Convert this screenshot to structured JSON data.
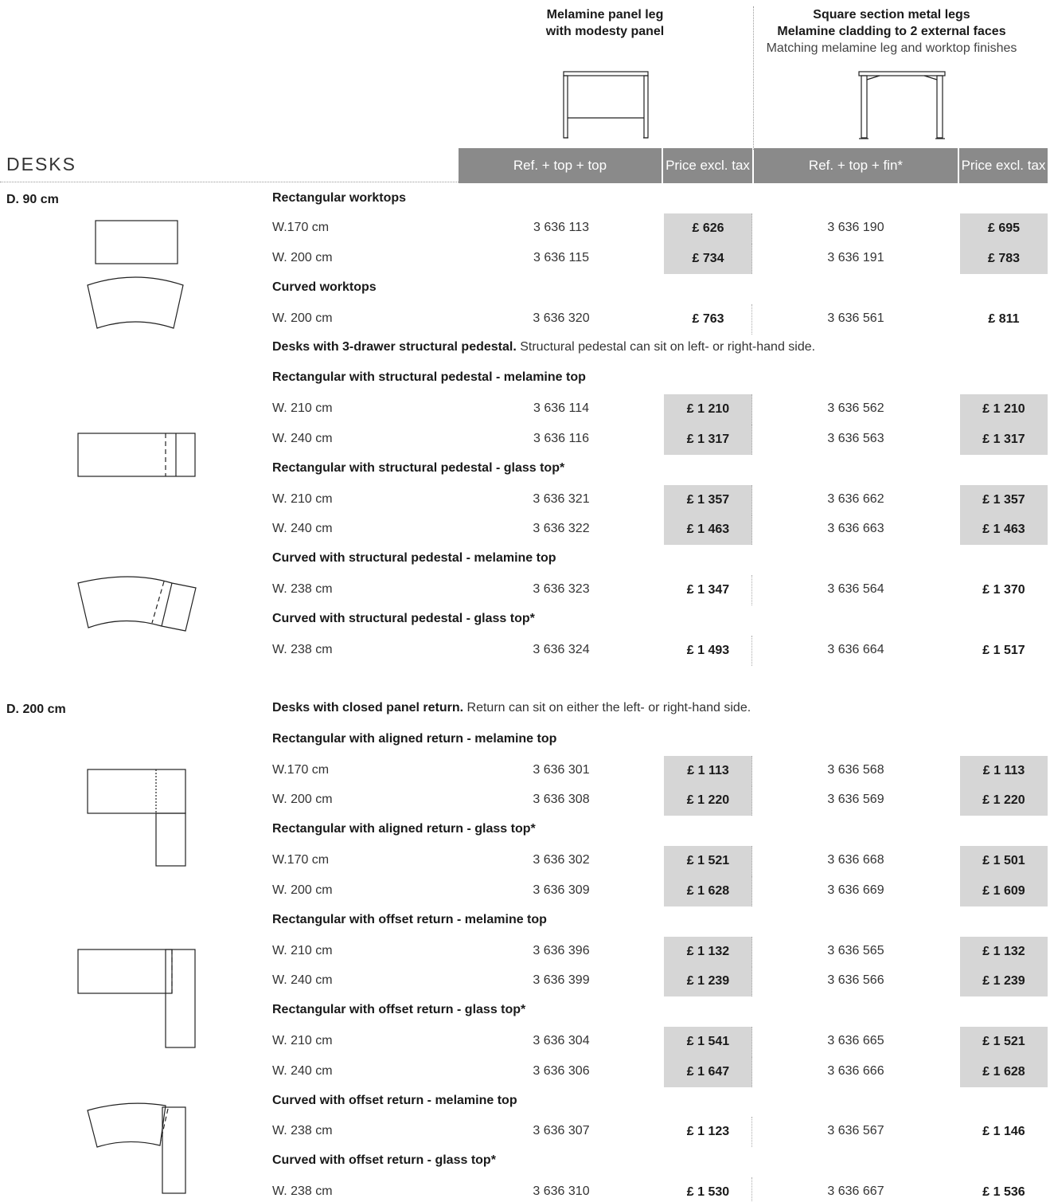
{
  "header": {
    "col1_line1": "Melamine panel leg",
    "col1_line2": "with modesty panel",
    "col2_line1": "Square section metal legs",
    "col2_line2": "Melamine cladding to 2 external faces",
    "col2_line3": "Matching melamine leg and worktop finishes"
  },
  "title": "DESKS",
  "table_header": {
    "ref1": "Ref. + top + top",
    "price1": "Price excl. tax",
    "ref2": "Ref. + top + fin*",
    "price2": "Price excl. tax"
  },
  "sections": {
    "d90": "D. 90 cm",
    "d200": "D. 200 cm"
  },
  "rows": [
    {
      "group": "Rectangular worktops"
    },
    {
      "w": "W.170 cm",
      "r1": "3 636 113",
      "p1": "£ 626",
      "r2": "3 636 190",
      "p2": "£ 695",
      "shaded": true
    },
    {
      "w": "W. 200 cm",
      "r1": "3 636 115",
      "p1": "£ 734",
      "r2": "3 636 191",
      "p2": "£ 783",
      "shaded": true
    },
    {
      "group": "Curved worktops"
    },
    {
      "w": "W. 200 cm",
      "r1": "3 636 320",
      "p1": "£ 763",
      "r2": "3 636 561",
      "p2": "£ 811",
      "shaded": false
    },
    {
      "group": "Desks with 3-drawer structural pedestal.",
      "note": " Structural pedestal can sit on left- or right-hand side."
    },
    {
      "group": "Rectangular with structural pedestal - melamine top"
    },
    {
      "w": "W. 210 cm",
      "r1": "3 636 114",
      "p1": "£ 1 210",
      "r2": "3 636 562",
      "p2": "£ 1 210",
      "shaded": true
    },
    {
      "w": "W. 240 cm",
      "r1": "3 636 116",
      "p1": "£ 1 317",
      "r2": "3 636 563",
      "p2": "£ 1 317",
      "shaded": true
    },
    {
      "group": "Rectangular with structural pedestal - glass top*"
    },
    {
      "w": "W. 210 cm",
      "r1": "3 636 321",
      "p1": "£ 1 357",
      "r2": "3 636 662",
      "p2": "£ 1 357",
      "shaded": true
    },
    {
      "w": "W. 240 cm",
      "r1": "3 636 322",
      "p1": "£ 1 463",
      "r2": "3 636 663",
      "p2": "£ 1 463",
      "shaded": true
    },
    {
      "group": "Curved with structural pedestal - melamine top"
    },
    {
      "w": "W. 238 cm",
      "r1": "3 636 323",
      "p1": "£ 1 347",
      "r2": "3 636 564",
      "p2": "£ 1 370",
      "shaded": false
    },
    {
      "group": "Curved with structural pedestal - glass top*"
    },
    {
      "w": "W. 238 cm",
      "r1": "3 636 324",
      "p1": "£ 1 493",
      "r2": "3 636 664",
      "p2": "£ 1 517",
      "shaded": false
    },
    {
      "group": "Desks with closed panel return.",
      "note": " Return can sit on either the left- or right-hand side."
    },
    {
      "group": "Rectangular with aligned return - melamine top"
    },
    {
      "w": "W.170 cm",
      "r1": "3 636 301",
      "p1": "£ 1 113",
      "r2": "3 636 568",
      "p2": "£ 1 113",
      "shaded": true
    },
    {
      "w": "W. 200 cm",
      "r1": "3 636 308",
      "p1": "£ 1 220",
      "r2": "3 636 569",
      "p2": "£ 1 220",
      "shaded": true
    },
    {
      "group": "Rectangular with aligned return - glass top*"
    },
    {
      "w": "W.170 cm",
      "r1": "3 636 302",
      "p1": "£ 1 521",
      "r2": "3 636 668",
      "p2": "£ 1 501",
      "shaded": true
    },
    {
      "w": "W. 200 cm",
      "r1": "3 636 309",
      "p1": "£ 1 628",
      "r2": "3 636 669",
      "p2": "£ 1 609",
      "shaded": true
    },
    {
      "group": "Rectangular with offset return - melamine top"
    },
    {
      "w": "W. 210 cm",
      "r1": "3 636 396",
      "p1": "£ 1 132",
      "r2": "3 636 565",
      "p2": "£ 1 132",
      "shaded": true
    },
    {
      "w": "W. 240 cm",
      "r1": "3 636 399",
      "p1": "£ 1 239",
      "r2": "3 636 566",
      "p2": "£ 1 239",
      "shaded": true
    },
    {
      "group": "Rectangular with offset return - glass top*"
    },
    {
      "w": "W. 210 cm",
      "r1": "3 636 304",
      "p1": "£ 1 541",
      "r2": "3 636 665",
      "p2": "£ 1 521",
      "shaded": true
    },
    {
      "w": "W. 240 cm",
      "r1": "3 636 306",
      "p1": "£ 1 647",
      "r2": "3 636 666",
      "p2": "£ 1 628",
      "shaded": true
    },
    {
      "group": "Curved with offset return - melamine top"
    },
    {
      "w": "W. 238 cm",
      "r1": "3 636 307",
      "p1": "£ 1 123",
      "r2": "3 636 567",
      "p2": "£ 1 146",
      "shaded": false
    },
    {
      "group": "Curved with offset return - glass top*"
    },
    {
      "w": "W. 238 cm",
      "r1": "3 636 310",
      "p1": "£ 1 530",
      "r2": "3 636 667",
      "p2": "£ 1 536",
      "shaded": false
    }
  ]
}
